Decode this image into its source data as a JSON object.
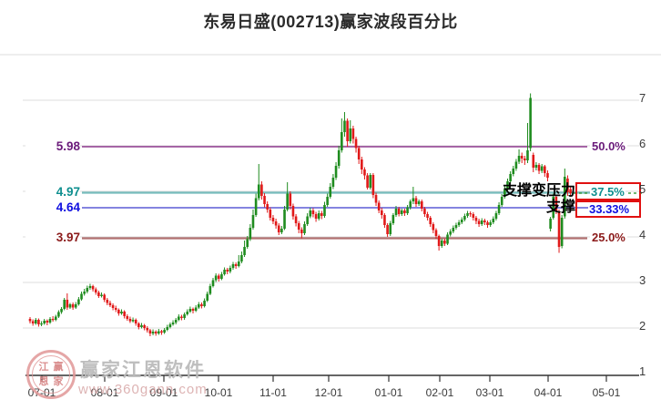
{
  "title": "东易日盛(002713)赢家波段百分比",
  "watermark": {
    "brand": "赢家江恩软件",
    "url": "www.360gann.com",
    "seal_chars": [
      "江",
      "赢",
      "恩",
      "家"
    ]
  },
  "annotations": [
    {
      "text": "支撑变压力",
      "at_value": 4.97
    },
    {
      "text": "支撑",
      "at_value": 4.64
    }
  ],
  "chart_data": {
    "type": "candlestick",
    "title": "东易日盛(002713)赢家波段百分比",
    "xlabel": "",
    "ylabel": "",
    "ylim": [
      1,
      8
    ],
    "grid": true,
    "yticks": [
      7,
      6,
      5,
      4,
      3,
      2,
      1
    ],
    "months": [
      "07-01",
      "08-01",
      "09-01",
      "10-01",
      "11-01",
      "12-01",
      "01-01",
      "02-01",
      "03-01",
      "04-01",
      "05-01"
    ],
    "levels": [
      {
        "label": "5.98",
        "value": 5.98,
        "pct": "50.0%",
        "line_color": "#8e3a8e",
        "label_color": "#6a1b7a",
        "line_width": 1.6,
        "boxed": false
      },
      {
        "label": "4.97",
        "value": 4.97,
        "pct": "37.5%",
        "line_color": "#76bcbc",
        "label_color": "#0e8f8f",
        "line_width": 2.2,
        "boxed": true
      },
      {
        "label": "4.64",
        "value": 4.64,
        "pct": "33.33%",
        "line_color": "#5c5cd6",
        "label_color": "#0f0fe0",
        "line_width": 1.6,
        "boxed": true
      },
      {
        "label": "3.97",
        "value": 3.97,
        "pct": "25.0%",
        "line_color": "#b07070",
        "label_color": "#8b1a1a",
        "line_width": 2.2,
        "boxed": false
      }
    ],
    "highlight_box_color": "#e01010",
    "last_price": 4.96,
    "up_color": "#1f8c1f",
    "down_color": "#e11919",
    "candles": [
      [
        2.2,
        2.24,
        2.1,
        2.15
      ],
      [
        2.15,
        2.19,
        2.05,
        2.1
      ],
      [
        2.1,
        2.22,
        2.07,
        2.18
      ],
      [
        2.18,
        2.21,
        2.03,
        2.08
      ],
      [
        2.08,
        2.15,
        2.04,
        2.1
      ],
      [
        2.1,
        2.2,
        2.07,
        2.16
      ],
      [
        2.16,
        2.19,
        2.06,
        2.12
      ],
      [
        2.12,
        2.24,
        2.09,
        2.2
      ],
      [
        2.2,
        2.26,
        2.14,
        2.18
      ],
      [
        2.18,
        2.29,
        2.15,
        2.25
      ],
      [
        2.25,
        2.39,
        2.22,
        2.35
      ],
      [
        2.35,
        2.46,
        2.31,
        2.42
      ],
      [
        2.42,
        2.66,
        2.39,
        2.62
      ],
      [
        2.62,
        2.76,
        2.4,
        2.45
      ],
      [
        2.45,
        2.55,
        2.42,
        2.52
      ],
      [
        2.52,
        2.56,
        2.4,
        2.45
      ],
      [
        2.45,
        2.57,
        2.42,
        2.52
      ],
      [
        2.52,
        2.68,
        2.49,
        2.63
      ],
      [
        2.63,
        2.8,
        2.6,
        2.75
      ],
      [
        2.75,
        2.86,
        2.71,
        2.8
      ],
      [
        2.8,
        2.93,
        2.76,
        2.88
      ],
      [
        2.88,
        2.97,
        2.84,
        2.92
      ],
      [
        2.92,
        2.95,
        2.8,
        2.85
      ],
      [
        2.85,
        2.89,
        2.73,
        2.78
      ],
      [
        2.78,
        2.82,
        2.66,
        2.7
      ],
      [
        2.7,
        2.78,
        2.67,
        2.73
      ],
      [
        2.73,
        2.76,
        2.57,
        2.62
      ],
      [
        2.62,
        2.66,
        2.5,
        2.55
      ],
      [
        2.55,
        2.6,
        2.46,
        2.5
      ],
      [
        2.5,
        2.54,
        2.39,
        2.44
      ],
      [
        2.44,
        2.49,
        2.35,
        2.4
      ],
      [
        2.4,
        2.43,
        2.27,
        2.32
      ],
      [
        2.32,
        2.41,
        2.29,
        2.36
      ],
      [
        2.36,
        2.39,
        2.21,
        2.26
      ],
      [
        2.26,
        2.3,
        2.16,
        2.2
      ],
      [
        2.2,
        2.25,
        2.11,
        2.15
      ],
      [
        2.15,
        2.23,
        2.12,
        2.18
      ],
      [
        2.18,
        2.21,
        2.05,
        2.1
      ],
      [
        2.1,
        2.13,
        1.97,
        2.02
      ],
      [
        2.02,
        2.11,
        1.99,
        2.06
      ],
      [
        2.06,
        2.09,
        1.95,
        2.0
      ],
      [
        2.0,
        2.04,
        1.9,
        1.95
      ],
      [
        1.95,
        1.98,
        1.82,
        1.88
      ],
      [
        1.88,
        1.97,
        1.84,
        1.92
      ],
      [
        1.92,
        1.95,
        1.83,
        1.88
      ],
      [
        1.88,
        1.98,
        1.85,
        1.93
      ],
      [
        1.93,
        1.96,
        1.85,
        1.9
      ],
      [
        1.9,
        2.0,
        1.87,
        1.96
      ],
      [
        1.96,
        2.07,
        1.93,
        2.02
      ],
      [
        2.02,
        2.12,
        1.99,
        2.08
      ],
      [
        2.08,
        2.17,
        2.05,
        2.12
      ],
      [
        2.12,
        2.22,
        2.08,
        2.18
      ],
      [
        2.18,
        2.3,
        2.15,
        2.25
      ],
      [
        2.25,
        2.29,
        2.17,
        2.22
      ],
      [
        2.22,
        2.34,
        2.18,
        2.3
      ],
      [
        2.3,
        2.41,
        2.27,
        2.36
      ],
      [
        2.36,
        2.47,
        2.33,
        2.42
      ],
      [
        2.42,
        2.45,
        2.32,
        2.38
      ],
      [
        2.38,
        2.5,
        2.35,
        2.45
      ],
      [
        2.45,
        2.57,
        2.42,
        2.52
      ],
      [
        2.52,
        2.56,
        2.43,
        2.48
      ],
      [
        2.48,
        2.65,
        2.45,
        2.6
      ],
      [
        2.6,
        2.8,
        2.57,
        2.75
      ],
      [
        2.75,
        2.97,
        2.72,
        2.92
      ],
      [
        2.92,
        3.1,
        2.89,
        3.05
      ],
      [
        3.05,
        3.2,
        3.01,
        3.15
      ],
      [
        3.15,
        3.19,
        3.02,
        3.08
      ],
      [
        3.08,
        3.23,
        3.05,
        3.18
      ],
      [
        3.18,
        3.33,
        3.15,
        3.28
      ],
      [
        3.28,
        3.32,
        3.18,
        3.24
      ],
      [
        3.24,
        3.37,
        3.2,
        3.32
      ],
      [
        3.32,
        3.45,
        3.28,
        3.4
      ],
      [
        3.4,
        3.44,
        3.3,
        3.36
      ],
      [
        3.36,
        3.6,
        3.33,
        3.46
      ],
      [
        3.46,
        3.68,
        3.42,
        3.6
      ],
      [
        3.6,
        3.92,
        3.56,
        3.78
      ],
      [
        3.78,
        4.02,
        3.74,
        3.95
      ],
      [
        3.95,
        4.28,
        3.91,
        4.2
      ],
      [
        4.2,
        4.6,
        4.16,
        4.48
      ],
      [
        4.48,
        4.95,
        4.44,
        4.85
      ],
      [
        4.85,
        5.6,
        4.8,
        5.15
      ],
      [
        5.15,
        5.22,
        4.82,
        4.9
      ],
      [
        4.9,
        4.96,
        4.65,
        4.72
      ],
      [
        4.72,
        4.78,
        4.53,
        4.6
      ],
      [
        4.6,
        4.65,
        4.36,
        4.42
      ],
      [
        4.42,
        4.48,
        4.28,
        4.34
      ],
      [
        4.34,
        4.4,
        4.18,
        4.25
      ],
      [
        4.25,
        4.3,
        4.04,
        4.1
      ],
      [
        4.1,
        4.24,
        4.06,
        4.18
      ],
      [
        4.18,
        4.68,
        4.15,
        4.6
      ],
      [
        4.6,
        5.2,
        4.56,
        4.95
      ],
      [
        4.95,
        5.0,
        4.6,
        4.68
      ],
      [
        4.68,
        4.73,
        4.38,
        4.45
      ],
      [
        4.45,
        4.5,
        4.23,
        4.3
      ],
      [
        4.3,
        4.35,
        4.08,
        4.16
      ],
      [
        4.16,
        4.21,
        3.97,
        4.08
      ],
      [
        4.08,
        4.34,
        4.04,
        4.28
      ],
      [
        4.28,
        4.52,
        4.24,
        4.45
      ],
      [
        4.45,
        4.64,
        4.41,
        4.58
      ],
      [
        4.58,
        4.63,
        4.43,
        4.5
      ],
      [
        4.5,
        4.55,
        4.33,
        4.4
      ],
      [
        4.4,
        4.58,
        4.36,
        4.52
      ],
      [
        4.52,
        4.57,
        4.39,
        4.46
      ],
      [
        4.46,
        4.77,
        4.42,
        4.7
      ],
      [
        4.7,
        4.95,
        4.66,
        4.88
      ],
      [
        4.88,
        5.18,
        4.84,
        5.1
      ],
      [
        5.1,
        5.38,
        5.05,
        5.3
      ],
      [
        5.3,
        5.64,
        5.25,
        5.56
      ],
      [
        5.56,
        6.0,
        5.5,
        5.9
      ],
      [
        5.9,
        6.6,
        5.85,
        6.3
      ],
      [
        6.3,
        6.74,
        6.2,
        6.55
      ],
      [
        6.55,
        6.6,
        5.98,
        6.1
      ],
      [
        6.1,
        6.56,
        6.05,
        6.38
      ],
      [
        6.38,
        6.44,
        6.05,
        6.15
      ],
      [
        6.15,
        6.2,
        5.85,
        5.95
      ],
      [
        5.95,
        6.0,
        5.6,
        5.7
      ],
      [
        5.7,
        5.76,
        5.38,
        5.48
      ],
      [
        5.48,
        5.53,
        5.26,
        5.35
      ],
      [
        5.35,
        5.4,
        5.04,
        5.08
      ],
      [
        5.08,
        5.4,
        5.04,
        5.36
      ],
      [
        5.36,
        5.4,
        4.85,
        4.92
      ],
      [
        4.92,
        4.97,
        4.68,
        4.75
      ],
      [
        4.75,
        4.8,
        4.52,
        4.58
      ],
      [
        4.58,
        4.64,
        4.4,
        4.48
      ],
      [
        4.48,
        4.52,
        4.2,
        4.26
      ],
      [
        4.26,
        4.3,
        4.0,
        4.06
      ],
      [
        4.06,
        4.35,
        4.02,
        4.3
      ],
      [
        4.3,
        4.52,
        4.26,
        4.48
      ],
      [
        4.48,
        4.68,
        4.44,
        4.62
      ],
      [
        4.62,
        4.66,
        4.45,
        4.5
      ],
      [
        4.5,
        4.62,
        4.46,
        4.58
      ],
      [
        4.58,
        4.62,
        4.46,
        4.52
      ],
      [
        4.52,
        4.7,
        4.48,
        4.65
      ],
      [
        4.65,
        4.82,
        4.6,
        4.78
      ],
      [
        4.78,
        5.1,
        4.72,
        4.85
      ],
      [
        4.85,
        4.9,
        4.66,
        4.72
      ],
      [
        4.72,
        4.82,
        4.68,
        4.78
      ],
      [
        4.78,
        4.82,
        4.56,
        4.62
      ],
      [
        4.62,
        4.66,
        4.44,
        4.5
      ],
      [
        4.5,
        4.55,
        4.36,
        4.42
      ],
      [
        4.42,
        4.46,
        4.22,
        4.28
      ],
      [
        4.28,
        4.32,
        4.08,
        4.15
      ],
      [
        4.15,
        4.19,
        3.96,
        4.02
      ],
      [
        4.02,
        4.05,
        3.7,
        3.8
      ],
      [
        3.8,
        3.96,
        3.76,
        3.92
      ],
      [
        3.92,
        3.96,
        3.8,
        3.85
      ],
      [
        3.85,
        4.1,
        3.82,
        4.05
      ],
      [
        4.05,
        4.17,
        4.01,
        4.12
      ],
      [
        4.12,
        4.25,
        4.08,
        4.2
      ],
      [
        4.2,
        4.31,
        4.16,
        4.26
      ],
      [
        4.26,
        4.37,
        4.22,
        4.32
      ],
      [
        4.32,
        4.43,
        4.28,
        4.38
      ],
      [
        4.38,
        4.51,
        4.34,
        4.46
      ],
      [
        4.46,
        4.57,
        4.42,
        4.52
      ],
      [
        4.52,
        4.56,
        4.44,
        4.5
      ],
      [
        4.5,
        4.54,
        4.36,
        4.42
      ],
      [
        4.42,
        4.46,
        4.28,
        4.35
      ],
      [
        4.35,
        4.4,
        4.22,
        4.28
      ],
      [
        4.28,
        4.41,
        4.24,
        4.36
      ],
      [
        4.36,
        4.4,
        4.26,
        4.32
      ],
      [
        4.32,
        4.36,
        4.2,
        4.26
      ],
      [
        4.26,
        4.37,
        4.22,
        4.32
      ],
      [
        4.32,
        4.45,
        4.28,
        4.4
      ],
      [
        4.4,
        4.57,
        4.36,
        4.52
      ],
      [
        4.52,
        4.76,
        4.48,
        4.7
      ],
      [
        4.7,
        4.94,
        4.66,
        4.88
      ],
      [
        4.88,
        5.11,
        4.84,
        5.05
      ],
      [
        5.05,
        5.28,
        5.0,
        5.22
      ],
      [
        5.22,
        5.44,
        5.17,
        5.38
      ],
      [
        5.38,
        5.56,
        5.33,
        5.5
      ],
      [
        5.5,
        5.71,
        5.45,
        5.65
      ],
      [
        5.65,
        5.92,
        5.6,
        5.78
      ],
      [
        5.78,
        5.85,
        5.62,
        5.72
      ],
      [
        5.72,
        5.78,
        5.58,
        5.68
      ],
      [
        5.68,
        6.5,
        5.62,
        5.9
      ],
      [
        5.95,
        7.15,
        5.88,
        7.05
      ],
      [
        5.8,
        5.85,
        5.42,
        5.52
      ],
      [
        5.52,
        5.64,
        5.46,
        5.58
      ],
      [
        5.58,
        5.62,
        5.38,
        5.45
      ],
      [
        5.45,
        5.6,
        5.4,
        5.55
      ],
      [
        5.55,
        5.58,
        5.32,
        5.4
      ],
      [
        5.4,
        5.46,
        5.22,
        5.3
      ],
      [
        4.18,
        4.44,
        4.12,
        4.4
      ],
      [
        4.42,
        4.95,
        4.38,
        4.88
      ],
      [
        4.88,
        4.92,
        4.5,
        4.55
      ],
      [
        4.55,
        4.6,
        3.65,
        3.78
      ],
      [
        3.8,
        4.48,
        3.75,
        4.42
      ],
      [
        4.45,
        5.5,
        4.4,
        5.32
      ],
      [
        5.28,
        5.35,
        4.9,
        4.98
      ],
      [
        5.05,
        5.12,
        4.88,
        4.96
      ]
    ]
  }
}
